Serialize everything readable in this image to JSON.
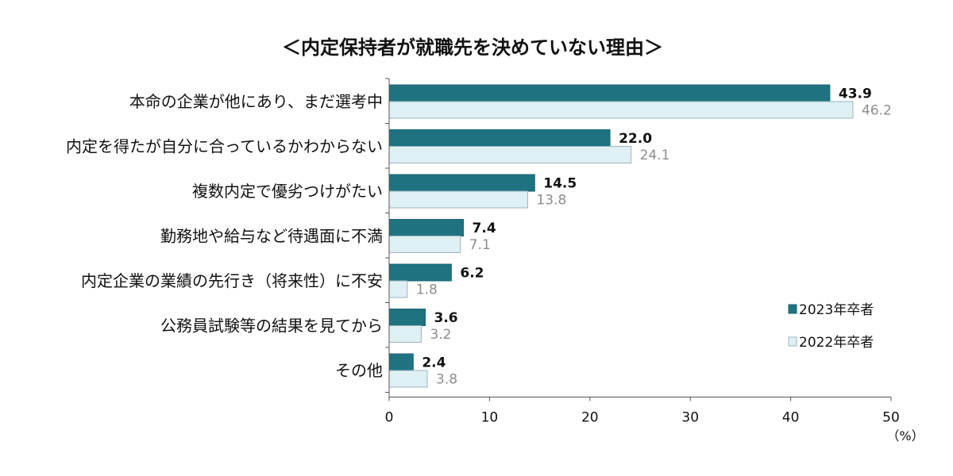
{
  "chart_data": {
    "type": "bar",
    "orientation": "horizontal",
    "title": "＜内定保持者が就職先を決めていない理由＞",
    "categories": [
      "本命の企業が他にあり、まだ選考中",
      "内定を得たが自分に合っているかわからない",
      "複数内定で優劣つけがたい",
      "勤務地や給与など待遇面に不満",
      "内定企業の業績の先行き（将来性）に不安",
      "公務員試験等の結果を見てから",
      "その他"
    ],
    "series": [
      {
        "name": "2023年卒者",
        "values": [
          43.9,
          22.0,
          14.5,
          7.4,
          6.2,
          3.6,
          2.4
        ],
        "labels": [
          "43.9",
          "22.0",
          "14.5",
          "7.4",
          "6.2",
          "3.6",
          "2.4"
        ],
        "color": "#1f7380"
      },
      {
        "name": "2022年卒者",
        "values": [
          46.2,
          24.1,
          13.8,
          7.1,
          1.8,
          3.2,
          3.8
        ],
        "labels": [
          "46.2",
          "24.1",
          "13.8",
          "7.1",
          "1.8",
          "3.2",
          "3.8"
        ],
        "color": "#dff0f5"
      }
    ],
    "xlim": [
      0,
      50
    ],
    "xticks": [
      "0",
      "10",
      "20",
      "30",
      "40",
      "50"
    ],
    "unit": "（%）",
    "grid": false,
    "legend_position": "bottom-right"
  }
}
